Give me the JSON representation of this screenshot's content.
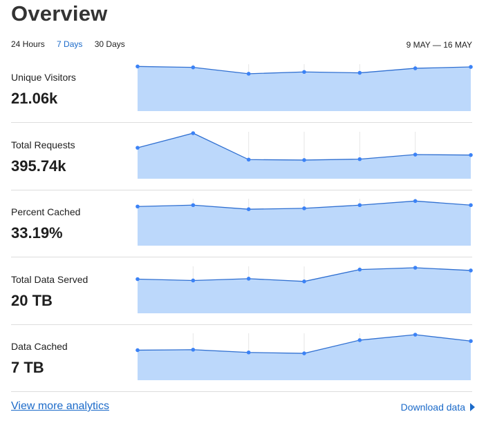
{
  "page": {
    "title": "Overview"
  },
  "range_tabs": [
    {
      "label": "24 Hours",
      "active": false
    },
    {
      "label": "7 Days",
      "active": true
    },
    {
      "label": "30 Days",
      "active": false
    }
  ],
  "date_range": "9 MAY — 16 MAY",
  "metrics": [
    {
      "label": "Unique Visitors",
      "value": "21.06k"
    },
    {
      "label": "Total Requests",
      "value": "395.74k"
    },
    {
      "label": "Percent Cached",
      "value": "33.19%"
    },
    {
      "label": "Total Data Served",
      "value": "20 TB"
    },
    {
      "label": "Data Cached",
      "value": "7 TB"
    }
  ],
  "footer": {
    "link": "View more analytics",
    "download": "Download data",
    "download_icon": "caret-right-icon"
  },
  "colors": {
    "accent": "#1b6ac9",
    "line": "#3b82f6",
    "fill": "#bcd8fb",
    "divider": "#dddddd"
  },
  "chart_data": [
    {
      "type": "area",
      "name": "Unique Visitors",
      "x": [
        1,
        2,
        3,
        4,
        5,
        6,
        7
      ],
      "values": [
        0.98,
        0.96,
        0.82,
        0.86,
        0.84,
        0.94,
        0.97
      ],
      "ylim": [
        0,
        1
      ]
    },
    {
      "type": "area",
      "name": "Total Requests",
      "x": [
        1,
        2,
        3,
        4,
        5,
        6,
        7
      ],
      "values": [
        0.68,
        1.0,
        0.42,
        0.41,
        0.43,
        0.53,
        0.52
      ],
      "ylim": [
        0,
        1
      ]
    },
    {
      "type": "area",
      "name": "Percent Cached",
      "x": [
        1,
        2,
        3,
        4,
        5,
        6,
        7
      ],
      "values": [
        0.86,
        0.89,
        0.8,
        0.82,
        0.89,
        0.98,
        0.89
      ],
      "ylim": [
        0,
        1
      ]
    },
    {
      "type": "area",
      "name": "Total Data Served",
      "x": [
        1,
        2,
        3,
        4,
        5,
        6,
        7
      ],
      "values": [
        0.75,
        0.72,
        0.76,
        0.7,
        0.96,
        1.0,
        0.94
      ],
      "ylim": [
        0,
        1
      ]
    },
    {
      "type": "area",
      "name": "Data Cached",
      "x": [
        1,
        2,
        3,
        4,
        5,
        6,
        7
      ],
      "values": [
        0.66,
        0.67,
        0.61,
        0.59,
        0.88,
        1.0,
        0.86
      ],
      "ylim": [
        0,
        1
      ]
    }
  ]
}
